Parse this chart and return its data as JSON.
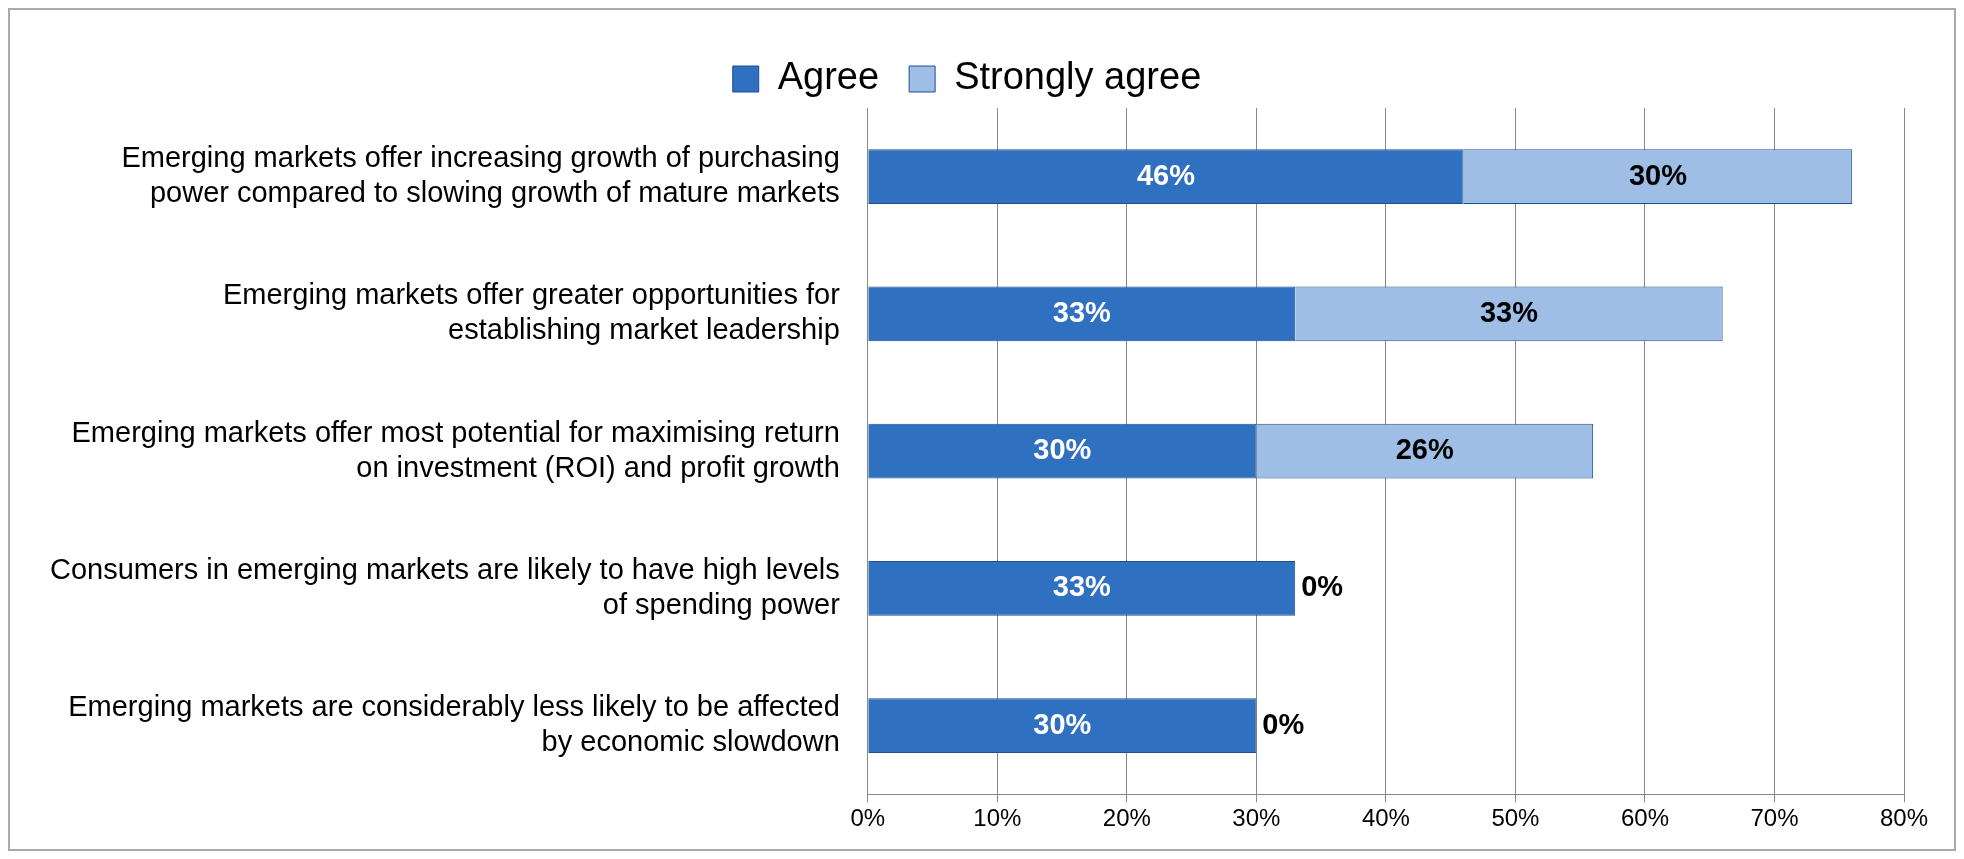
{
  "chart_data": {
    "type": "bar",
    "orientation": "horizontal",
    "stacked": true,
    "categories": [
      "Emerging markets offer increasing growth of purchasing\npower compared to slowing growth of mature markets",
      "Emerging markets offer greater opportunities for\nestablishing market leadership",
      "Emerging markets offer most potential for maximising return\non investment (ROI) and profit growth",
      "Consumers in emerging markets are likely to have high levels\nof spending power",
      "Emerging markets are considerably less likely to be affected\nby economic slowdown"
    ],
    "series": [
      {
        "name": "Agree",
        "color": "#2f70c1",
        "values": [
          46,
          33,
          30,
          33,
          30
        ],
        "value_labels": [
          "46%",
          "33%",
          "30%",
          "33%",
          "30%"
        ]
      },
      {
        "name": "Strongly agree",
        "color": "#9ebee6",
        "values": [
          30,
          33,
          26,
          0,
          0
        ],
        "value_labels": [
          "30%",
          "33%",
          "26%",
          "0%",
          "0%"
        ]
      }
    ],
    "xlim": [
      0,
      80
    ],
    "xticks": [
      {
        "value": 0,
        "label": "0%"
      },
      {
        "value": 10,
        "label": "10%"
      },
      {
        "value": 20,
        "label": "20%"
      },
      {
        "value": 30,
        "label": "30%"
      },
      {
        "value": 40,
        "label": "40%"
      },
      {
        "value": 50,
        "label": "50%"
      },
      {
        "value": 60,
        "label": "60%"
      },
      {
        "value": 70,
        "label": "70%"
      },
      {
        "value": 80,
        "label": "80%"
      }
    ],
    "grid": "x",
    "legend": "top"
  }
}
